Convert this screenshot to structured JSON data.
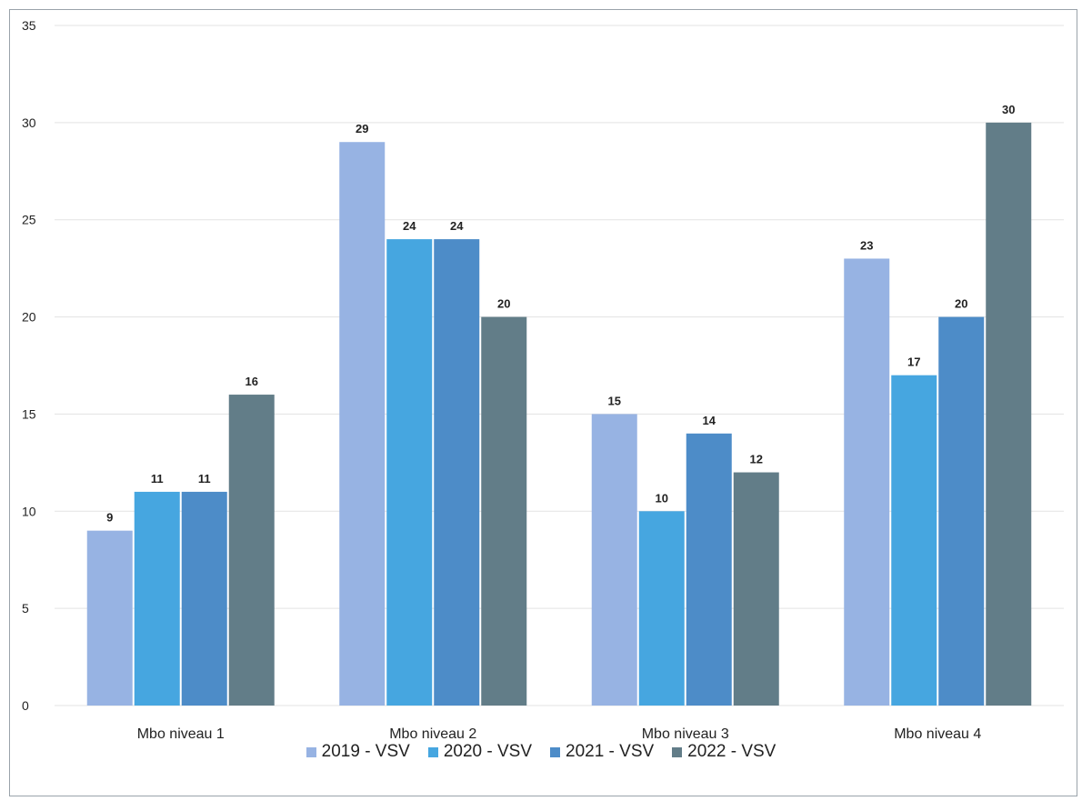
{
  "chart_data": {
    "type": "bar",
    "categories": [
      "Mbo niveau 1",
      "Mbo niveau 2",
      "Mbo niveau 3",
      "Mbo niveau 4"
    ],
    "series": [
      {
        "name": "2019 - VSV",
        "values": [
          9,
          29,
          15,
          23
        ],
        "color": "#97b3e3"
      },
      {
        "name": "2020 - VSV",
        "values": [
          11,
          24,
          10,
          17
        ],
        "color": "#46a6e0"
      },
      {
        "name": "2021 - VSV",
        "values": [
          11,
          24,
          14,
          20
        ],
        "color": "#4d8cc8"
      },
      {
        "name": "2022 - VSV",
        "values": [
          16,
          20,
          12,
          30
        ],
        "color": "#627d88"
      }
    ],
    "yticks": [
      "0",
      "5",
      "10",
      "15",
      "20",
      "25",
      "30",
      "35"
    ],
    "ylim": [
      0,
      35
    ],
    "grid": true,
    "data_labels": true,
    "legend_position": "bottom",
    "title": "",
    "xlabel": "",
    "ylabel": ""
  }
}
